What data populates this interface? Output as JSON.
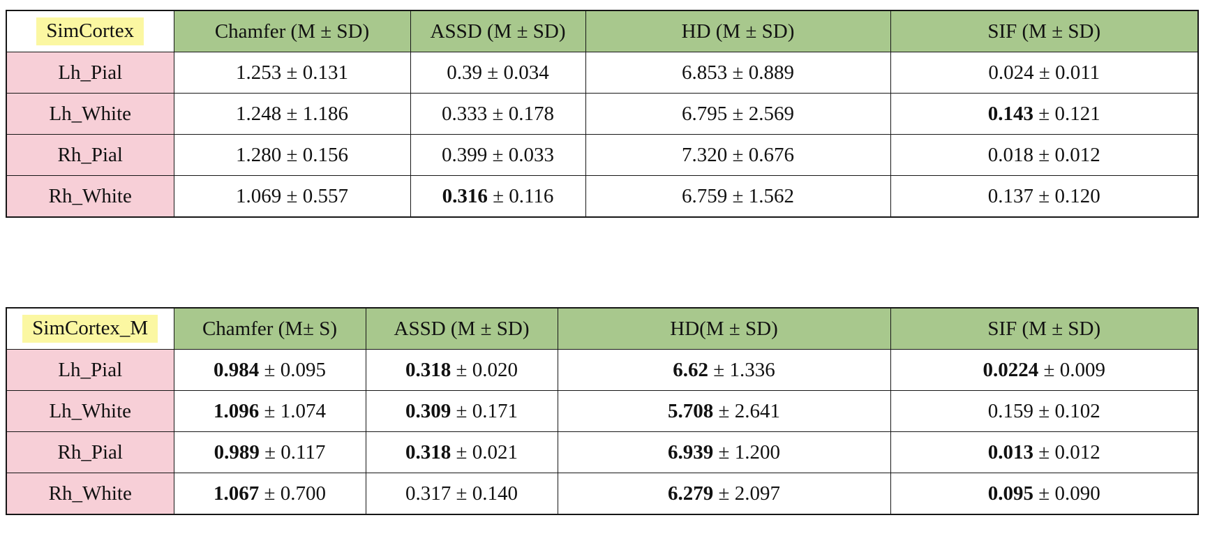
{
  "colors": {
    "header_bg": "#a8c88d",
    "row_label_bg": "#f7cfd7",
    "highlight_bg": "#fbf7a2",
    "border": "#161616"
  },
  "pm": "±",
  "tables": [
    {
      "title": "SimCortex",
      "headers": [
        "Chamfer (M ± SD)",
        "ASSD (M ± SD)",
        "HD (M ± SD)",
        "SIF (M ± SD)"
      ],
      "rows": [
        {
          "label": "Lh_Pial",
          "cells": [
            {
              "m": "1.253",
              "sd": "0.131",
              "bold": false
            },
            {
              "m": "0.39",
              "sd": "0.034",
              "bold": false
            },
            {
              "m": "6.853",
              "sd": "0.889",
              "bold": false
            },
            {
              "m": "0.024",
              "sd": "0.011",
              "bold": false
            }
          ]
        },
        {
          "label": "Lh_White",
          "cells": [
            {
              "m": "1.248",
              "sd": "1.186",
              "bold": false
            },
            {
              "m": "0.333",
              "sd": "0.178",
              "bold": false
            },
            {
              "m": "6.795",
              "sd": "2.569",
              "bold": false
            },
            {
              "m": "0.143",
              "sd": "0.121",
              "bold": true
            }
          ]
        },
        {
          "label": "Rh_Pial",
          "cells": [
            {
              "m": "1.280",
              "sd": "0.156",
              "bold": false
            },
            {
              "m": "0.399",
              "sd": "0.033",
              "bold": false
            },
            {
              "m": "7.320",
              "sd": "0.676",
              "bold": false
            },
            {
              "m": "0.018",
              "sd": "0.012",
              "bold": false
            }
          ]
        },
        {
          "label": "Rh_White",
          "cells": [
            {
              "m": "1.069",
              "sd": "0.557",
              "bold": false
            },
            {
              "m": "0.316",
              "sd": "0.116",
              "bold": true
            },
            {
              "m": "6.759",
              "sd": "1.562",
              "bold": false
            },
            {
              "m": "0.137",
              "sd": "0.120",
              "bold": false
            }
          ]
        }
      ]
    },
    {
      "title": "SimCortex_M",
      "headers": [
        "Chamfer (M± S)",
        "ASSD (M ± SD)",
        "HD(M ± SD)",
        "SIF (M ± SD)"
      ],
      "rows": [
        {
          "label": "Lh_Pial",
          "cells": [
            {
              "m": "0.984",
              "sd": "0.095",
              "bold": true
            },
            {
              "m": "0.318",
              "sd": "0.020",
              "bold": true
            },
            {
              "m": "6.62",
              "sd": "1.336",
              "bold": true
            },
            {
              "m": "0.0224",
              "sd": "0.009",
              "bold": true
            }
          ]
        },
        {
          "label": "Lh_White",
          "cells": [
            {
              "m": "1.096",
              "sd": "1.074",
              "bold": true
            },
            {
              "m": "0.309",
              "sd": "0.171",
              "bold": true
            },
            {
              "m": "5.708",
              "sd": "2.641",
              "bold": true
            },
            {
              "m": "0.159",
              "sd": "0.102",
              "bold": false
            }
          ]
        },
        {
          "label": "Rh_Pial",
          "cells": [
            {
              "m": "0.989",
              "sd": "0.117",
              "bold": true
            },
            {
              "m": "0.318",
              "sd": "0.021",
              "bold": true
            },
            {
              "m": "6.939",
              "sd": "1.200",
              "bold": true
            },
            {
              "m": "0.013",
              "sd": "0.012",
              "bold": true
            }
          ]
        },
        {
          "label": "Rh_White",
          "cells": [
            {
              "m": "1.067",
              "sd": "0.700",
              "bold": true
            },
            {
              "m": "0.317",
              "sd": "0.140",
              "bold": false
            },
            {
              "m": "6.279",
              "sd": "2.097",
              "bold": true
            },
            {
              "m": "0.095",
              "sd": "0.090",
              "bold": true
            }
          ]
        }
      ]
    }
  ]
}
